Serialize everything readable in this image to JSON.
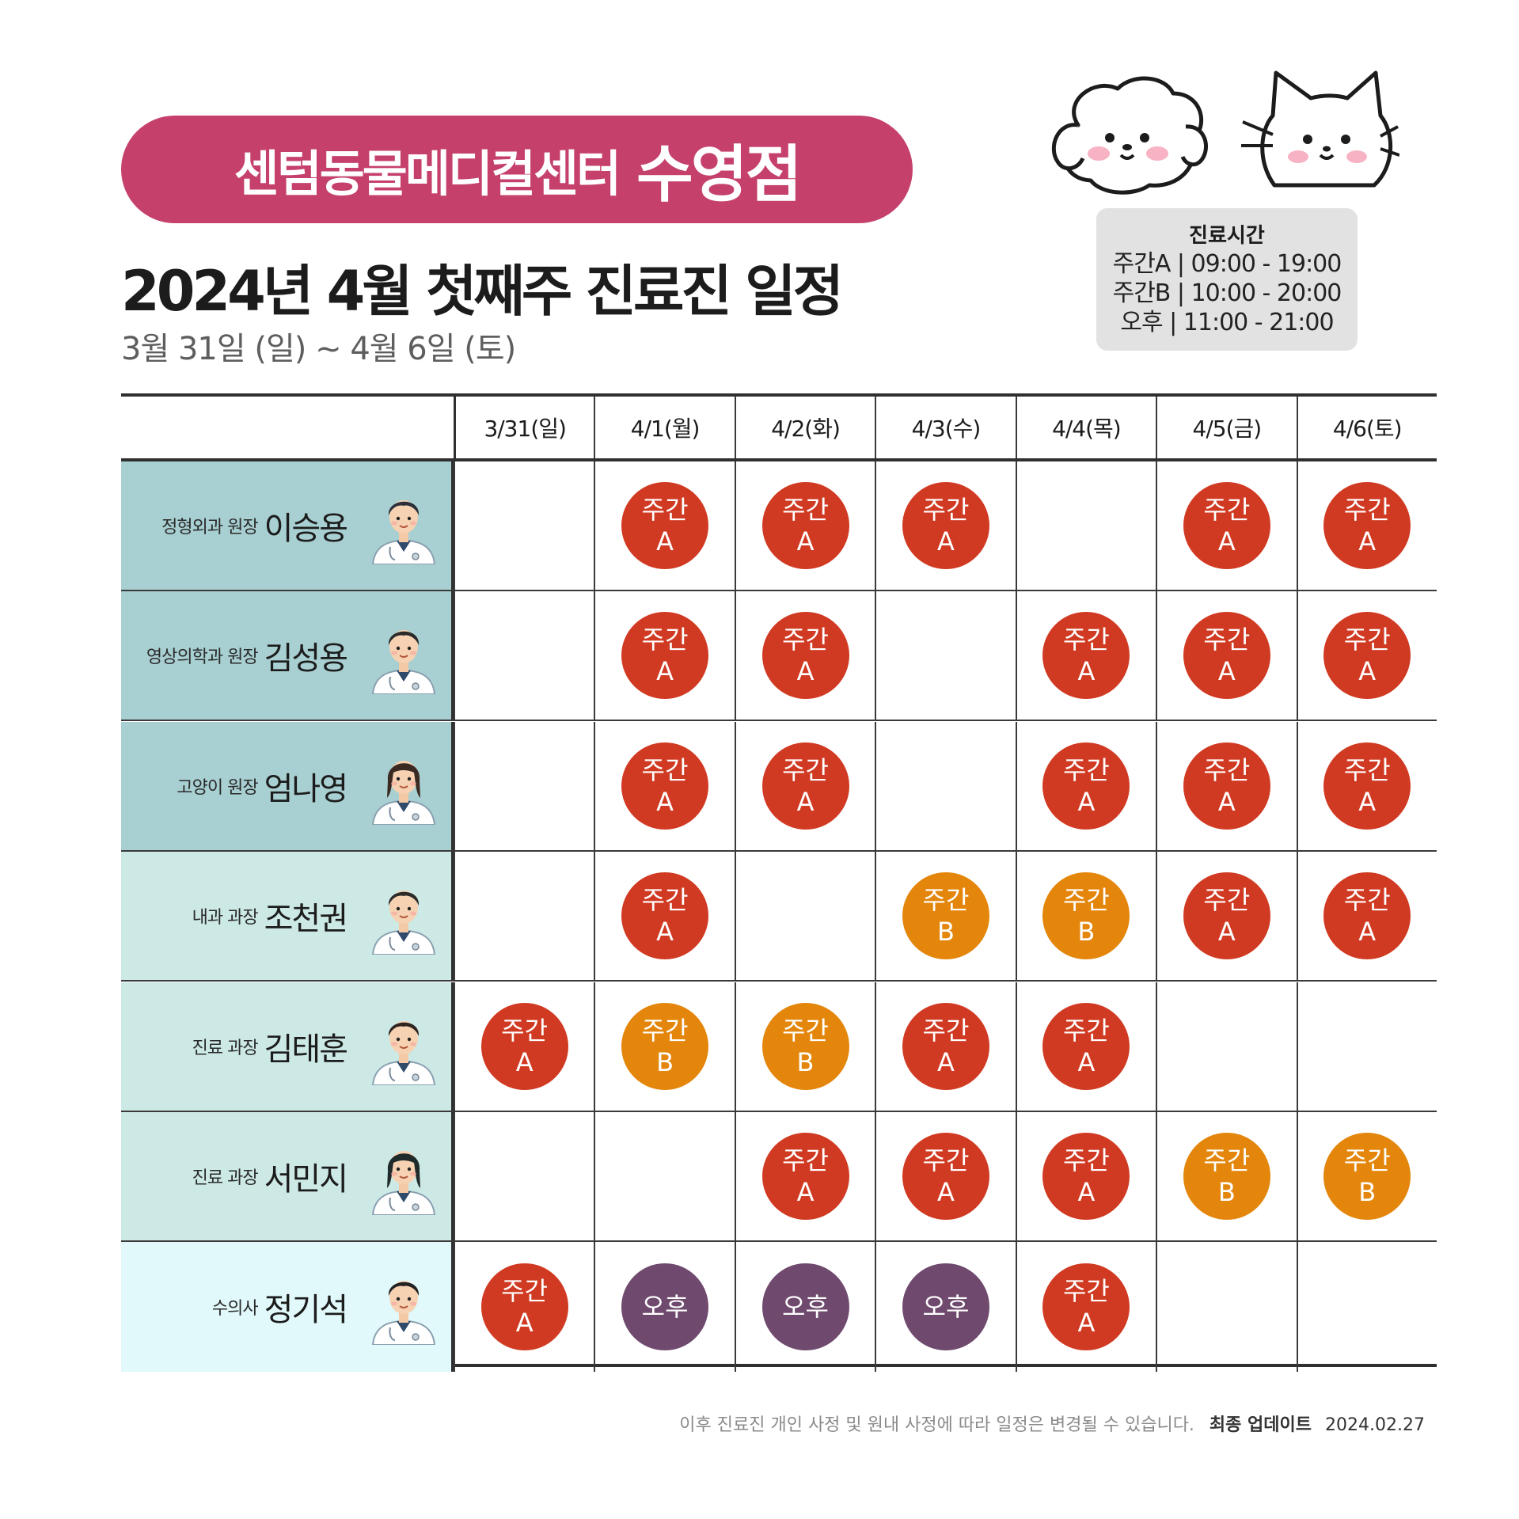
{
  "brand": {
    "name": "센텀동물메디컬센터",
    "branch": "수영점",
    "color": "#c5416c"
  },
  "title": "2024년 4월 첫째주 진료진 일정",
  "subtitle": "3월 31일 (일) ~ 4월 6일 (토)",
  "hours": {
    "title": "진료시간",
    "lines": [
      "주간A | 09:00 - 19:00",
      "주간B | 10:00 - 20:00",
      "오후 | 11:00 - 21:00"
    ]
  },
  "days": [
    "3/31(일)",
    "4/1(월)",
    "4/2(화)",
    "4/3(수)",
    "4/4(목)",
    "4/5(금)",
    "4/6(토)"
  ],
  "shift_types": {
    "A": {
      "label": "주간\nA",
      "color": "#d13a22"
    },
    "B": {
      "label": "주간\nB",
      "color": "#e3860b"
    },
    "P": {
      "label": "오후",
      "color": "#6f4a6e"
    }
  },
  "doctors": [
    {
      "role": "정형외과 원장",
      "name": "이승용",
      "row_color": "#a8cfd1",
      "schedule": [
        "",
        "A",
        "A",
        "A",
        "",
        "A",
        "A"
      ]
    },
    {
      "role": "영상의학과 원장",
      "name": "김성용",
      "row_color": "#a8cfd1",
      "schedule": [
        "",
        "A",
        "A",
        "",
        "A",
        "A",
        "A"
      ]
    },
    {
      "role": "고양이 원장",
      "name": "엄나영",
      "row_color": "#a8cfd1",
      "schedule": [
        "",
        "A",
        "A",
        "",
        "A",
        "A",
        "A"
      ]
    },
    {
      "role": "내과 과장",
      "name": "조천권",
      "row_color": "#cde9e6",
      "schedule": [
        "",
        "A",
        "",
        "B",
        "B",
        "A",
        "A"
      ]
    },
    {
      "role": "진료 과장",
      "name": "김태훈",
      "row_color": "#cde9e6",
      "schedule": [
        "A",
        "B",
        "B",
        "A",
        "A",
        "",
        ""
      ]
    },
    {
      "role": "진료 과장",
      "name": "서민지",
      "row_color": "#cde9e6",
      "schedule": [
        "",
        "",
        "A",
        "A",
        "A",
        "B",
        "B"
      ]
    },
    {
      "role": "수의사",
      "name": "정기석",
      "row_color": "#e1f9fa",
      "schedule": [
        "A",
        "P",
        "P",
        "P",
        "A",
        "",
        ""
      ]
    }
  ],
  "footer": {
    "note": "이후 진료진 개인 사정 및 원내 사정에 따라 일정은 변경될 수 있습니다.",
    "update_label": "최종 업데이트",
    "update_date": "2024.02.27"
  }
}
